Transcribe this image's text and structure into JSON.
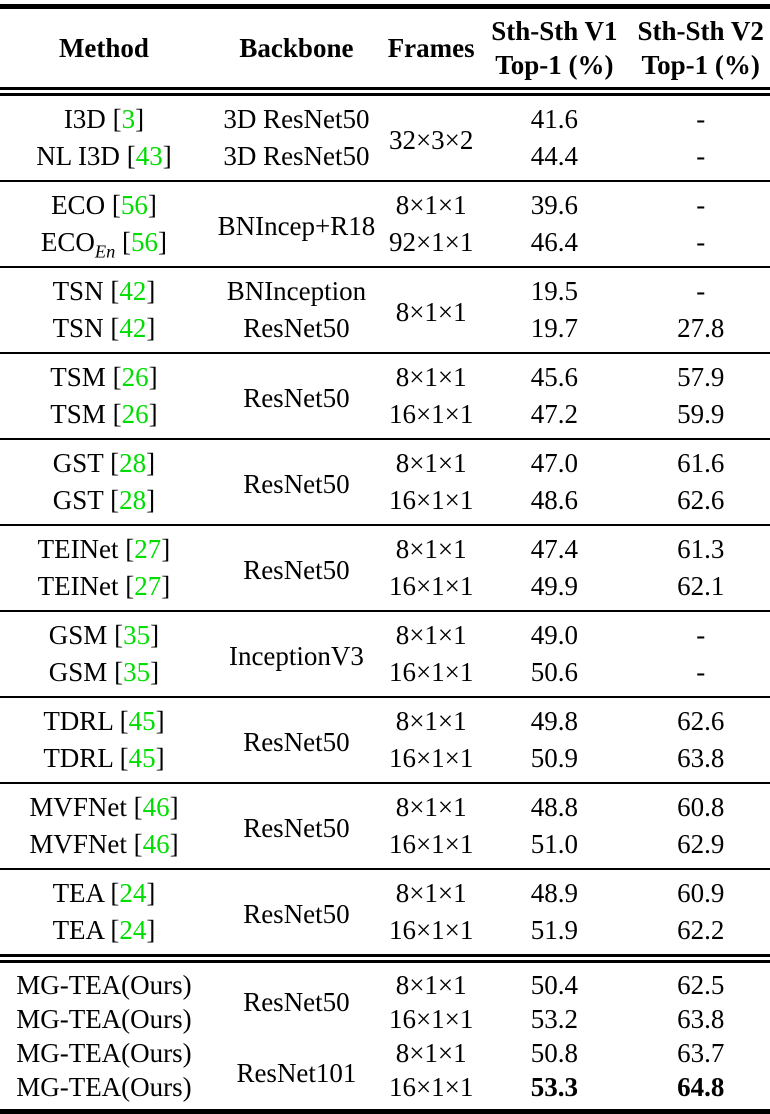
{
  "colors": {
    "citation_green": "#00dd00",
    "rule_black": "#000000"
  },
  "symbols": {
    "bracket_open": "[",
    "bracket_close": "]"
  },
  "table": {
    "headers": [
      {
        "line1": "Method"
      },
      {
        "line1": "Backbone"
      },
      {
        "line1": "Frames"
      },
      {
        "line1": "Sth-Sth V1",
        "line2": "Top-1 (%)"
      },
      {
        "line1": "Sth-Sth V2",
        "line2": "Top-1 (%)"
      }
    ],
    "groups": [
      {
        "rule": "single",
        "rows": [
          {
            "method": {
              "name": "I3D",
              "cite": "3"
            },
            "backbone": "3D ResNet50",
            "frames": {
              "text": "32×3×2",
              "span": 2
            },
            "v1": "41.6",
            "v2": "-"
          },
          {
            "method": {
              "name": "NL I3D",
              "cite": "43"
            },
            "backbone": "3D ResNet50",
            "v1": "44.4",
            "v2": "-"
          }
        ]
      },
      {
        "rule": "single",
        "rows": [
          {
            "method": {
              "name": "ECO",
              "cite": "56"
            },
            "backbone": {
              "text": "BNIncep+R18",
              "span": 2
            },
            "frames": "8×1×1",
            "v1": "39.6",
            "v2": "-"
          },
          {
            "method": {
              "name": "ECO",
              "sub": "En",
              "cite": "56"
            },
            "frames": "92×1×1",
            "v1": "46.4",
            "v2": "-"
          }
        ]
      },
      {
        "rule": "single",
        "rows": [
          {
            "method": {
              "name": "TSN",
              "cite": "42"
            },
            "backbone": "BNInception",
            "frames": {
              "text": "8×1×1",
              "span": 2
            },
            "v1": "19.5",
            "v2": "-"
          },
          {
            "method": {
              "name": "TSN",
              "cite": "42"
            },
            "backbone": "ResNet50",
            "v1": "19.7",
            "v2": "27.8"
          }
        ]
      },
      {
        "rule": "single",
        "rows": [
          {
            "method": {
              "name": "TSM",
              "cite": "26"
            },
            "backbone": {
              "text": "ResNet50",
              "span": 2
            },
            "frames": "8×1×1",
            "v1": "45.6",
            "v2": "57.9"
          },
          {
            "method": {
              "name": "TSM",
              "cite": "26"
            },
            "frames": "16×1×1",
            "v1": "47.2",
            "v2": "59.9"
          }
        ]
      },
      {
        "rule": "single",
        "rows": [
          {
            "method": {
              "name": "GST",
              "cite": "28"
            },
            "backbone": {
              "text": "ResNet50",
              "span": 2
            },
            "frames": "8×1×1",
            "v1": "47.0",
            "v2": "61.6"
          },
          {
            "method": {
              "name": "GST",
              "cite": "28"
            },
            "frames": "16×1×1",
            "v1": "48.6",
            "v2": "62.6"
          }
        ]
      },
      {
        "rule": "single",
        "rows": [
          {
            "method": {
              "name": "TEINet",
              "cite": "27"
            },
            "backbone": {
              "text": "ResNet50",
              "span": 2
            },
            "frames": "8×1×1",
            "v1": "47.4",
            "v2": "61.3"
          },
          {
            "method": {
              "name": "TEINet",
              "cite": "27"
            },
            "frames": "16×1×1",
            "v1": "49.9",
            "v2": "62.1"
          }
        ]
      },
      {
        "rule": "single",
        "rows": [
          {
            "method": {
              "name": "GSM",
              "cite": "35"
            },
            "backbone": {
              "text": "InceptionV3",
              "span": 2
            },
            "frames": "8×1×1",
            "v1": "49.0",
            "v2": "-"
          },
          {
            "method": {
              "name": "GSM",
              "cite": "35"
            },
            "frames": "16×1×1",
            "v1": "50.6",
            "v2": "-"
          }
        ]
      },
      {
        "rule": "single",
        "rows": [
          {
            "method": {
              "name": "TDRL",
              "cite": "45"
            },
            "backbone": {
              "text": "ResNet50",
              "span": 2
            },
            "frames": "8×1×1",
            "v1": "49.8",
            "v2": "62.6"
          },
          {
            "method": {
              "name": "TDRL",
              "cite": "45"
            },
            "frames": "16×1×1",
            "v1": "50.9",
            "v2": "63.8"
          }
        ]
      },
      {
        "rule": "single",
        "rows": [
          {
            "method": {
              "name": "MVFNet",
              "cite": "46"
            },
            "backbone": {
              "text": "ResNet50",
              "span": 2
            },
            "frames": "8×1×1",
            "v1": "48.8",
            "v2": "60.8"
          },
          {
            "method": {
              "name": "MVFNet",
              "cite": "46"
            },
            "frames": "16×1×1",
            "v1": "51.0",
            "v2": "62.9"
          }
        ]
      },
      {
        "rule": "single",
        "rows": [
          {
            "method": {
              "name": "TEA",
              "cite": "24"
            },
            "backbone": {
              "text": "ResNet50",
              "span": 2
            },
            "frames": "8×1×1",
            "v1": "48.9",
            "v2": "60.9"
          },
          {
            "method": {
              "name": "TEA",
              "cite": "24"
            },
            "frames": "16×1×1",
            "v1": "51.9",
            "v2": "62.2"
          }
        ]
      },
      {
        "rule": "double",
        "rows": [
          {
            "method": {
              "name": "MG-TEA(Ours)"
            },
            "backbone": {
              "text": "ResNet50",
              "span": 2
            },
            "frames": "8×1×1",
            "v1": "50.4",
            "v2": "62.5"
          },
          {
            "method": {
              "name": "MG-TEA(Ours)"
            },
            "frames": "16×1×1",
            "v1": "53.2",
            "v2": "63.8"
          },
          {
            "method": {
              "name": "MG-TEA(Ours)"
            },
            "backbone": {
              "text": "ResNet101",
              "span": 2
            },
            "frames": "8×1×1",
            "v1": "50.8",
            "v2": "63.7"
          },
          {
            "method": {
              "name": "MG-TEA(Ours)"
            },
            "frames": "16×1×1",
            "v1": {
              "text": "53.3",
              "bold": true
            },
            "v2": {
              "text": "64.8",
              "bold": true
            }
          }
        ]
      }
    ]
  }
}
